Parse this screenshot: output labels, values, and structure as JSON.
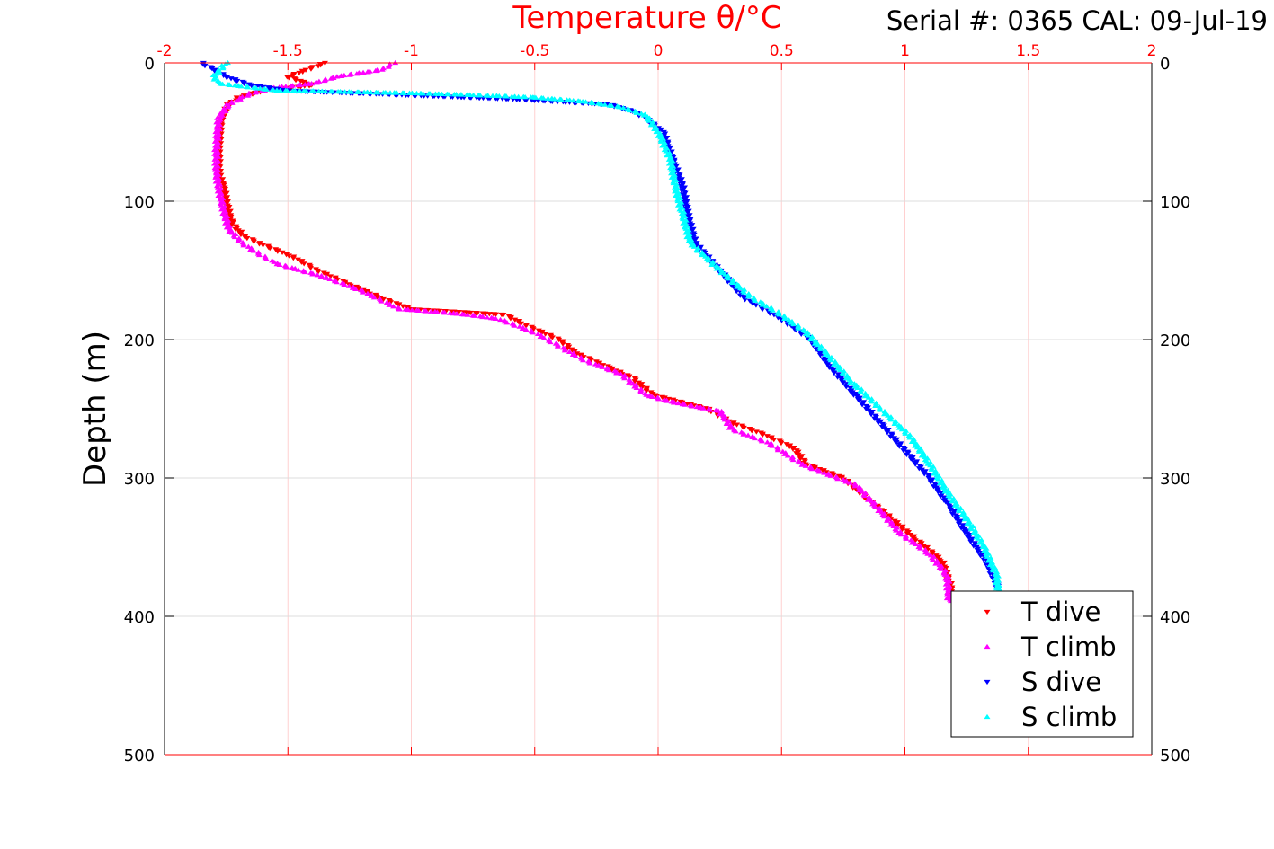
{
  "chart_data": {
    "type": "scatter",
    "title": "Temperature θ/°C",
    "subtitle": "Serial #: 0365  CAL: 09-Jul-19",
    "xlabel": "Temperature θ/°C",
    "ylabel": "Depth (m)",
    "xlim": [
      -2,
      2
    ],
    "ylim": [
      0,
      500
    ],
    "y_reversed": true,
    "grid": true,
    "legend_position": "bottom-right",
    "x_ticks": [
      "-2",
      "-1.5",
      "-1",
      "-0.5",
      "0",
      "0.5",
      "1",
      "1.5",
      "2"
    ],
    "x_tick_values": [
      -2,
      -1.5,
      -1,
      -0.5,
      0,
      0.5,
      1,
      1.5,
      2
    ],
    "y_ticks": [
      "0",
      "100",
      "200",
      "300",
      "400",
      "500"
    ],
    "y_tick_values": [
      0,
      100,
      200,
      300,
      400,
      500
    ],
    "colors": {
      "title": "#ff0000",
      "grid_x": "#ffd0d0",
      "grid_y": "#dddddd"
    },
    "series": [
      {
        "name": "T dive",
        "marker": "triangle-down",
        "color": "#ff0000",
        "depth": [
          0,
          10,
          16,
          20,
          25,
          30,
          40,
          60,
          80,
          90,
          100,
          115,
          125,
          130,
          140,
          150,
          160,
          170,
          178,
          180,
          182,
          190,
          200,
          210,
          220,
          228,
          240,
          250,
          260,
          268,
          278,
          290,
          300,
          315,
          330,
          345,
          360,
          375,
          390
        ],
        "x": [
          -1.35,
          -1.5,
          -1.4,
          -1.6,
          -1.7,
          -1.74,
          -1.77,
          -1.78,
          -1.78,
          -1.76,
          -1.75,
          -1.73,
          -1.68,
          -1.62,
          -1.48,
          -1.38,
          -1.25,
          -1.12,
          -1.0,
          -0.8,
          -0.62,
          -0.53,
          -0.4,
          -0.33,
          -0.2,
          -0.1,
          -0.02,
          0.2,
          0.3,
          0.42,
          0.55,
          0.6,
          0.75,
          0.85,
          0.95,
          1.05,
          1.15,
          1.18,
          1.2
        ]
      },
      {
        "name": "T climb",
        "marker": "triangle-up",
        "color": "#ff00ff",
        "depth": [
          0,
          5,
          10,
          15,
          18,
          22,
          30,
          40,
          60,
          80,
          100,
          120,
          130,
          140,
          145,
          155,
          165,
          178,
          180,
          182,
          185,
          195,
          205,
          215,
          225,
          240,
          245,
          252,
          265,
          275,
          290,
          295,
          305,
          320,
          340,
          355,
          370,
          390
        ],
        "x": [
          -1.07,
          -1.12,
          -1.3,
          -1.4,
          -1.55,
          -1.65,
          -1.74,
          -1.78,
          -1.79,
          -1.79,
          -1.77,
          -1.74,
          -1.69,
          -1.6,
          -1.55,
          -1.35,
          -1.2,
          -1.05,
          -0.9,
          -0.78,
          -0.65,
          -0.5,
          -0.4,
          -0.3,
          -0.15,
          -0.05,
          0.05,
          0.25,
          0.3,
          0.45,
          0.58,
          0.65,
          0.8,
          0.88,
          0.98,
          1.1,
          1.17,
          1.18
        ]
      },
      {
        "name": "S dive",
        "marker": "triangle-down",
        "color": "#0000ff",
        "depth": [
          0,
          5,
          10,
          16,
          20,
          22,
          24,
          26,
          28,
          30,
          35,
          40,
          50,
          70,
          90,
          110,
          130,
          150,
          170,
          185,
          200,
          220,
          240,
          260,
          280,
          300,
          320,
          340,
          360,
          380
        ],
        "x": [
          -1.85,
          -1.8,
          -1.75,
          -1.65,
          -1.5,
          -1.2,
          -0.9,
          -0.6,
          -0.4,
          -0.2,
          -0.1,
          -0.05,
          0.02,
          0.06,
          0.1,
          0.12,
          0.15,
          0.25,
          0.35,
          0.5,
          0.62,
          0.7,
          0.8,
          0.9,
          1.0,
          1.1,
          1.18,
          1.25,
          1.33,
          1.38
        ]
      },
      {
        "name": "S climb",
        "marker": "triangle-up",
        "color": "#00ffff",
        "depth": [
          0,
          10,
          15,
          20,
          22,
          23,
          25,
          28,
          32,
          38,
          50,
          70,
          90,
          110,
          130,
          150,
          170,
          180,
          195,
          210,
          230,
          250,
          270,
          290,
          310,
          330,
          350,
          370,
          385
        ],
        "x": [
          -1.75,
          -1.8,
          -1.78,
          -1.55,
          -1.0,
          -0.8,
          -0.5,
          -0.3,
          -0.15,
          -0.05,
          0.0,
          0.05,
          0.07,
          0.1,
          0.13,
          0.25,
          0.38,
          0.48,
          0.6,
          0.68,
          0.78,
          0.9,
          1.02,
          1.1,
          1.17,
          1.25,
          1.32,
          1.37,
          1.38
        ]
      }
    ]
  }
}
